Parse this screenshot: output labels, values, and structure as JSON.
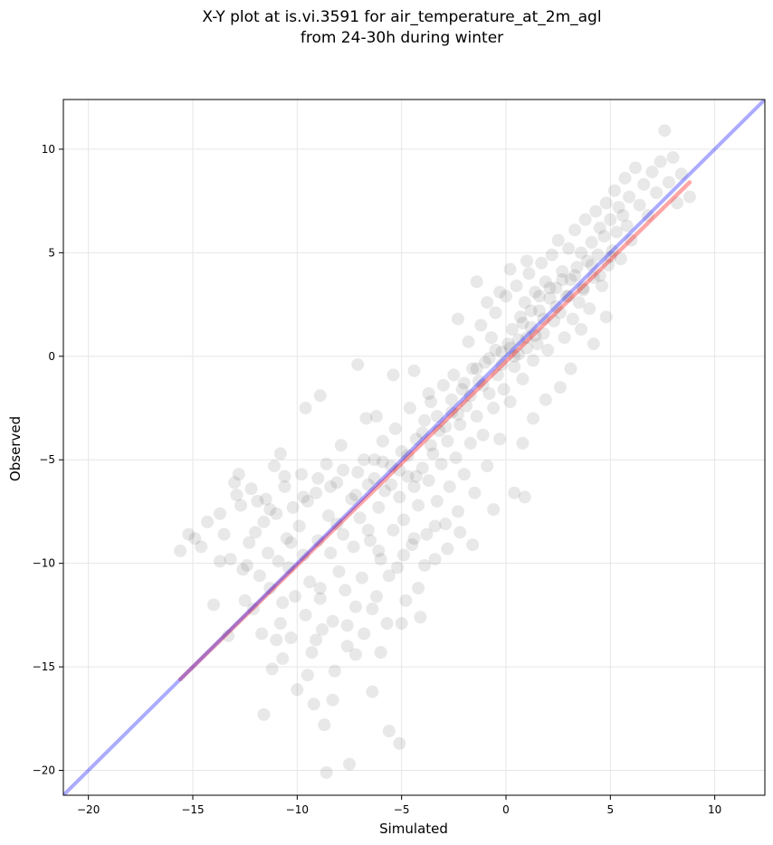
{
  "chart_data": {
    "type": "scatter",
    "title_line1": "X-Y plot at is.vi.3591 for air_temperature_at_2m_agl",
    "title_line2": "from 24-30h during winter",
    "xlabel": "Simulated",
    "ylabel": "Observed",
    "xlim": [
      -21.2,
      12.4
    ],
    "ylim": [
      -21.2,
      12.4
    ],
    "xticks": [
      -20,
      -15,
      -10,
      -5,
      0,
      5,
      10
    ],
    "yticks": [
      -20,
      -15,
      -10,
      -5,
      0,
      5,
      10
    ],
    "xtick_labels": [
      "−20",
      "−15",
      "−10",
      "−5",
      "0",
      "5",
      "10"
    ],
    "ytick_labels": [
      "−20",
      "−15",
      "−10",
      "−5",
      "0",
      "5",
      "10"
    ],
    "grid": true,
    "colors": {
      "points": "#000000",
      "identity_line": "#0000ff",
      "fit_line": "#ff0000",
      "grid": "#e6e6e6"
    },
    "identity_line": {
      "x": [
        -21.2,
        12.4
      ],
      "y": [
        -21.2,
        12.4
      ]
    },
    "fit_line": {
      "x": [
        -15.6,
        8.8
      ],
      "y": [
        -15.6,
        8.4
      ]
    },
    "points": [
      [
        -15.6,
        -9.4
      ],
      [
        -15.2,
        -8.6
      ],
      [
        -14.9,
        -8.8
      ],
      [
        -14.6,
        -9.2
      ],
      [
        -14.3,
        -8.0
      ],
      [
        -14.0,
        -12.0
      ],
      [
        -13.7,
        -7.6
      ],
      [
        -13.5,
        -8.6
      ],
      [
        -13.3,
        -13.5
      ],
      [
        -13.2,
        -9.8
      ],
      [
        -13.0,
        -6.1
      ],
      [
        -12.8,
        -5.7
      ],
      [
        -12.7,
        -7.2
      ],
      [
        -12.6,
        -10.3
      ],
      [
        -12.5,
        -11.8
      ],
      [
        -12.3,
        -9.0
      ],
      [
        -12.2,
        -6.4
      ],
      [
        -12.1,
        -12.2
      ],
      [
        -12.0,
        -8.5
      ],
      [
        -11.9,
        -7.0
      ],
      [
        -11.8,
        -10.6
      ],
      [
        -11.7,
        -13.4
      ],
      [
        -11.6,
        -8.0
      ],
      [
        -11.5,
        -6.9
      ],
      [
        -11.4,
        -9.5
      ],
      [
        -11.3,
        -11.2
      ],
      [
        -11.2,
        -15.1
      ],
      [
        -11.1,
        -5.3
      ],
      [
        -11.0,
        -7.6
      ],
      [
        -10.9,
        -9.9
      ],
      [
        -10.8,
        -12.9
      ],
      [
        -10.7,
        -14.6
      ],
      [
        -10.6,
        -6.3
      ],
      [
        -10.5,
        -8.8
      ],
      [
        -10.4,
        -10.2
      ],
      [
        -10.3,
        -13.6
      ],
      [
        -10.2,
        -7.3
      ],
      [
        -10.1,
        -11.6
      ],
      [
        -10.0,
        -16.1
      ],
      [
        -9.9,
        -8.2
      ],
      [
        -9.8,
        -5.7
      ],
      [
        -9.7,
        -9.6
      ],
      [
        -9.6,
        -12.5
      ],
      [
        -9.5,
        -7.0
      ],
      [
        -9.4,
        -10.9
      ],
      [
        -9.3,
        -14.3
      ],
      [
        -9.2,
        -16.8
      ],
      [
        -9.1,
        -6.6
      ],
      [
        -9.0,
        -8.9
      ],
      [
        -8.9,
        -11.7
      ],
      [
        -8.8,
        -13.2
      ],
      [
        -8.7,
        -17.8
      ],
      [
        -8.6,
        -5.2
      ],
      [
        -8.5,
        -7.7
      ],
      [
        -8.4,
        -9.5
      ],
      [
        -8.3,
        -12.8
      ],
      [
        -8.2,
        -15.2
      ],
      [
        -8.1,
        -6.1
      ],
      [
        -8.0,
        -10.4
      ],
      [
        -7.9,
        -4.3
      ],
      [
        -7.8,
        -8.6
      ],
      [
        -7.7,
        -11.3
      ],
      [
        -7.6,
        -14.0
      ],
      [
        -7.5,
        -19.7
      ],
      [
        -7.4,
        -6.9
      ],
      [
        -7.3,
        -9.2
      ],
      [
        -7.2,
        -12.1
      ],
      [
        -7.1,
        -5.6
      ],
      [
        -7.0,
        -7.8
      ],
      [
        -6.9,
        -10.7
      ],
      [
        -6.8,
        -13.4
      ],
      [
        -6.7,
        -3.0
      ],
      [
        -6.6,
        -6.2
      ],
      [
        -6.5,
        -8.9
      ],
      [
        -6.4,
        -16.2
      ],
      [
        -6.3,
        -5.0
      ],
      [
        -6.2,
        -11.6
      ],
      [
        -6.1,
        -7.3
      ],
      [
        -6.0,
        -9.8
      ],
      [
        -5.9,
        -4.1
      ],
      [
        -5.8,
        -6.5
      ],
      [
        -5.7,
        -12.9
      ],
      [
        -5.6,
        -18.1
      ],
      [
        -5.5,
        -5.3
      ],
      [
        -5.4,
        -8.4
      ],
      [
        -5.3,
        -3.5
      ],
      [
        -5.2,
        -10.2
      ],
      [
        -5.1,
        -6.8
      ],
      [
        -5.0,
        -4.6
      ],
      [
        -4.9,
        -7.9
      ],
      [
        -4.8,
        -11.8
      ],
      [
        -4.7,
        -5.8
      ],
      [
        -4.6,
        -2.5
      ],
      [
        -4.5,
        -9.1
      ],
      [
        -4.4,
        -6.3
      ],
      [
        -4.3,
        -4.0
      ],
      [
        -4.2,
        -7.2
      ],
      [
        -4.1,
        -12.6
      ],
      [
        -4.0,
        -5.4
      ],
      [
        -3.9,
        -3.1
      ],
      [
        -3.8,
        -8.6
      ],
      [
        -3.7,
        -6.0
      ],
      [
        -3.6,
        -2.2
      ],
      [
        -3.5,
        -4.7
      ],
      [
        -3.4,
        -9.8
      ],
      [
        -3.3,
        -7.0
      ],
      [
        -3.2,
        -3.6
      ],
      [
        -3.1,
        -5.2
      ],
      [
        -3.0,
        -1.4
      ],
      [
        -2.9,
        -8.1
      ],
      [
        -2.8,
        -4.1
      ],
      [
        -2.7,
        -6.3
      ],
      [
        -2.6,
        -2.7
      ],
      [
        -2.5,
        -0.9
      ],
      [
        -2.4,
        -4.9
      ],
      [
        -2.3,
        -7.5
      ],
      [
        -2.2,
        -3.3
      ],
      [
        -2.1,
        -1.6
      ],
      [
        -2.0,
        -5.7
      ],
      [
        -1.9,
        -2.4
      ],
      [
        -1.8,
        0.7
      ],
      [
        -1.7,
        -4.2
      ],
      [
        -1.6,
        -0.6
      ],
      [
        -1.5,
        -6.6
      ],
      [
        -1.4,
        -2.9
      ],
      [
        -1.3,
        -1.2
      ],
      [
        -1.2,
        1.5
      ],
      [
        -1.1,
        -3.8
      ],
      [
        -1.0,
        -0.3
      ],
      [
        -0.9,
        -5.3
      ],
      [
        -0.8,
        -1.8
      ],
      [
        -0.7,
        0.9
      ],
      [
        -0.6,
        -2.5
      ],
      [
        -0.5,
        2.1
      ],
      [
        -0.4,
        -0.9
      ],
      [
        -0.3,
        -4.0
      ],
      [
        -0.2,
        0.2
      ],
      [
        -0.1,
        -1.6
      ],
      [
        0.0,
        2.9
      ],
      [
        0.1,
        0.6
      ],
      [
        0.2,
        -2.2
      ],
      [
        0.3,
        1.3
      ],
      [
        0.4,
        -0.5
      ],
      [
        0.5,
        3.4
      ],
      [
        0.6,
        0.1
      ],
      [
        0.7,
        1.9
      ],
      [
        0.8,
        -1.1
      ],
      [
        0.9,
        2.6
      ],
      [
        1.0,
        0.9
      ],
      [
        1.1,
        4.0
      ],
      [
        1.2,
        1.4
      ],
      [
        1.3,
        -0.2
      ],
      [
        1.4,
        3.1
      ],
      [
        1.5,
        0.6
      ],
      [
        1.6,
        2.2
      ],
      [
        1.7,
        4.5
      ],
      [
        1.8,
        1.1
      ],
      [
        1.9,
        3.6
      ],
      [
        2.0,
        0.3
      ],
      [
        2.1,
        2.8
      ],
      [
        2.2,
        4.9
      ],
      [
        2.3,
        1.7
      ],
      [
        2.4,
        3.3
      ],
      [
        2.5,
        5.6
      ],
      [
        2.6,
        2.1
      ],
      [
        2.7,
        4.1
      ],
      [
        2.8,
        0.9
      ],
      [
        2.9,
        2.9
      ],
      [
        3.0,
        5.2
      ],
      [
        3.1,
        3.7
      ],
      [
        3.2,
        1.8
      ],
      [
        3.3,
        6.1
      ],
      [
        3.4,
        4.3
      ],
      [
        3.5,
        2.6
      ],
      [
        3.6,
        5.0
      ],
      [
        3.7,
        3.2
      ],
      [
        3.8,
        6.6
      ],
      [
        3.9,
        4.6
      ],
      [
        4.0,
        2.3
      ],
      [
        4.1,
        5.5
      ],
      [
        4.2,
        3.8
      ],
      [
        4.3,
        7.0
      ],
      [
        4.4,
        4.9
      ],
      [
        4.5,
        6.2
      ],
      [
        4.6,
        3.4
      ],
      [
        4.7,
        5.8
      ],
      [
        4.8,
        7.4
      ],
      [
        4.9,
        4.4
      ],
      [
        5.0,
        6.6
      ],
      [
        5.1,
        5.1
      ],
      [
        5.2,
        8.0
      ],
      [
        5.3,
        6.0
      ],
      [
        5.4,
        7.2
      ],
      [
        5.5,
        4.7
      ],
      [
        5.6,
        6.8
      ],
      [
        5.7,
        8.6
      ],
      [
        5.8,
        6.3
      ],
      [
        5.9,
        7.7
      ],
      [
        6.0,
        5.6
      ],
      [
        6.2,
        9.1
      ],
      [
        6.4,
        7.3
      ],
      [
        6.6,
        8.3
      ],
      [
        6.8,
        6.8
      ],
      [
        7.0,
        8.9
      ],
      [
        7.2,
        7.9
      ],
      [
        7.4,
        9.4
      ],
      [
        7.6,
        10.9
      ],
      [
        7.8,
        8.4
      ],
      [
        8.0,
        9.6
      ],
      [
        8.2,
        7.4
      ],
      [
        8.4,
        8.8
      ],
      [
        8.8,
        7.7
      ],
      [
        -12.9,
        -6.7
      ],
      [
        -11.3,
        -7.4
      ],
      [
        -10.6,
        -5.8
      ],
      [
        -9.7,
        -6.8
      ],
      [
        -9.0,
        -5.9
      ],
      [
        -8.4,
        -6.3
      ],
      [
        -7.8,
        -5.5
      ],
      [
        -7.2,
        -6.7
      ],
      [
        -6.8,
        -5.0
      ],
      [
        -6.3,
        -5.9
      ],
      [
        -5.9,
        -5.1
      ],
      [
        -5.5,
        -6.2
      ],
      [
        -5.1,
        -5.5
      ],
      [
        -4.7,
        -4.8
      ],
      [
        -4.3,
        -5.8
      ],
      [
        -4.0,
        -3.7
      ],
      [
        -3.6,
        -4.3
      ],
      [
        -3.3,
        -2.9
      ],
      [
        -2.9,
        -3.4
      ],
      [
        -2.6,
        -2.1
      ],
      [
        -2.3,
        -2.8
      ],
      [
        -2.0,
        -1.3
      ],
      [
        -1.7,
        -1.9
      ],
      [
        -1.4,
        -0.6
      ],
      [
        -1.1,
        -1.4
      ],
      [
        -0.8,
        -0.1
      ],
      [
        -0.5,
        0.3
      ],
      [
        -0.2,
        -0.4
      ],
      [
        0.2,
        0.4
      ],
      [
        0.4,
        0.0
      ],
      [
        0.6,
        0.8
      ],
      [
        0.8,
        1.6
      ],
      [
        1.0,
        0.4
      ],
      [
        1.2,
        2.2
      ],
      [
        1.4,
        1.0
      ],
      [
        1.6,
        2.9
      ],
      [
        1.8,
        1.8
      ],
      [
        2.1,
        3.3
      ],
      [
        2.4,
        2.4
      ],
      [
        2.7,
        3.7
      ],
      [
        3.0,
        2.9
      ],
      [
        3.3,
        3.9
      ],
      [
        3.7,
        3.3
      ],
      [
        4.1,
        4.4
      ],
      [
        4.5,
        3.9
      ],
      [
        5.0,
        4.8
      ],
      [
        -6.6,
        -8.4
      ],
      [
        -6.1,
        -9.4
      ],
      [
        -5.6,
        -10.6
      ],
      [
        -4.9,
        -9.6
      ],
      [
        -4.4,
        -8.8
      ],
      [
        -3.9,
        -10.1
      ],
      [
        -3.4,
        -8.2
      ],
      [
        -2.8,
        -9.3
      ],
      [
        -2.2,
        -8.5
      ],
      [
        -1.6,
        -9.1
      ],
      [
        -10.8,
        -4.7
      ],
      [
        -9.6,
        -2.5
      ],
      [
        -8.9,
        -1.9
      ],
      [
        -7.1,
        -0.4
      ],
      [
        -6.2,
        -2.9
      ],
      [
        -5.4,
        -0.9
      ],
      [
        -4.4,
        -0.7
      ],
      [
        -3.7,
        -1.8
      ],
      [
        0.8,
        -4.2
      ],
      [
        0.4,
        -6.6
      ],
      [
        0.9,
        -6.8
      ],
      [
        -0.6,
        -7.4
      ],
      [
        1.3,
        -3.0
      ],
      [
        1.9,
        -2.1
      ],
      [
        2.6,
        -1.5
      ],
      [
        3.1,
        -0.6
      ],
      [
        4.2,
        0.6
      ],
      [
        3.6,
        1.3
      ],
      [
        4.8,
        1.9
      ],
      [
        -0.3,
        3.1
      ],
      [
        -1.4,
        3.6
      ],
      [
        -2.3,
        1.8
      ],
      [
        -0.9,
        2.6
      ],
      [
        0.2,
        4.2
      ],
      [
        1.0,
        4.6
      ],
      [
        -8.1,
        -8.1
      ],
      [
        -10.3,
        -9.0
      ],
      [
        -12.4,
        -10.1
      ],
      [
        -13.7,
        -9.9
      ],
      [
        -9.1,
        -13.7
      ],
      [
        -7.6,
        -13.0
      ],
      [
        -8.9,
        -11.2
      ],
      [
        -6.4,
        -12.2
      ],
      [
        -5.0,
        -12.9
      ],
      [
        -4.2,
        -11.2
      ],
      [
        -11.6,
        -17.3
      ],
      [
        -10.7,
        -11.9
      ],
      [
        -9.5,
        -15.4
      ],
      [
        -8.3,
        -16.6
      ],
      [
        -7.2,
        -14.4
      ],
      [
        -6.0,
        -14.3
      ],
      [
        -5.1,
        -18.7
      ],
      [
        -8.6,
        -20.1
      ],
      [
        -11.0,
        -13.7
      ]
    ]
  }
}
